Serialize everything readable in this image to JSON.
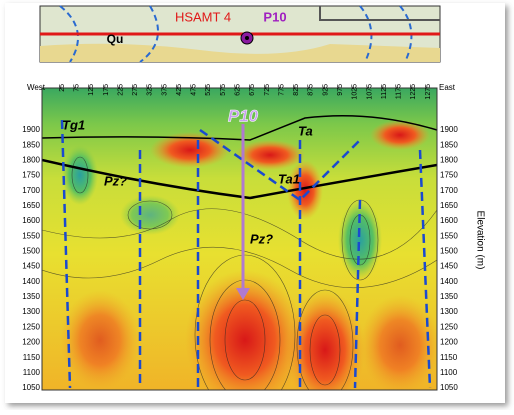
{
  "map": {
    "unit_label": "Qu",
    "line_label": "HSAMT 4",
    "point_label": "P10"
  },
  "section": {
    "west_label": "West",
    "east_label": "East",
    "x_labels": [
      "25",
      "75",
      "125",
      "175",
      "225",
      "275",
      "325",
      "375",
      "425",
      "475",
      "525",
      "575",
      "625",
      "675",
      "725",
      "775",
      "825",
      "875",
      "925",
      "975",
      "1025",
      "1075",
      "1125",
      "1175",
      "1225",
      "1275"
    ],
    "y_labels": [
      "1900",
      "1850",
      "1800",
      "1750",
      "1700",
      "1650",
      "1600",
      "1550",
      "1500",
      "1450",
      "1400",
      "1350",
      "1300",
      "1250",
      "1200",
      "1150",
      "1100",
      "1050"
    ],
    "y_axis_title": "Elevation (m)",
    "point_label": "P10",
    "annotations": [
      "Tg1",
      "Ta",
      "Ta1",
      "Pz?",
      "Pz?"
    ]
  }
}
